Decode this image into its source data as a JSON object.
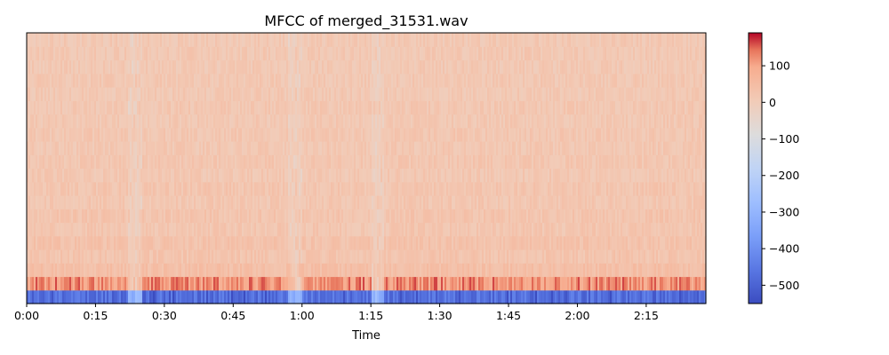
{
  "chart_data": {
    "type": "heatmap",
    "title": "MFCC of merged_31531.wav",
    "xlabel": "Time",
    "ylabel": "",
    "x_range_seconds": [
      0,
      148
    ],
    "x_ticks": [
      {
        "value": 0,
        "label": "0:00"
      },
      {
        "value": 15,
        "label": "0:15"
      },
      {
        "value": 30,
        "label": "0:30"
      },
      {
        "value": 45,
        "label": "0:45"
      },
      {
        "value": 60,
        "label": "1:00"
      },
      {
        "value": 75,
        "label": "1:15"
      },
      {
        "value": 90,
        "label": "1:30"
      },
      {
        "value": 105,
        "label": "1:45"
      },
      {
        "value": 120,
        "label": "2:00"
      },
      {
        "value": 135,
        "label": "2:15"
      }
    ],
    "n_coefficients": 20,
    "colormap": "coolwarm",
    "color_range": [
      -550,
      190
    ],
    "colorbar_ticks": [
      {
        "value": 100,
        "label": "100"
      },
      {
        "value": 0,
        "label": "0"
      },
      {
        "value": -100,
        "label": "−100"
      },
      {
        "value": -200,
        "label": "−200"
      },
      {
        "value": -300,
        "label": "−300"
      },
      {
        "value": -400,
        "label": "−400"
      },
      {
        "value": -500,
        "label": "−500"
      }
    ],
    "coefficient_typical_values": [
      -470,
      120,
      40,
      25,
      30,
      20,
      25,
      18,
      22,
      15,
      20,
      15,
      18,
      14,
      16,
      13,
      15,
      12,
      14,
      12
    ],
    "quiet_regions_seconds": [
      [
        22,
        25
      ],
      [
        75,
        78
      ],
      [
        57,
        60
      ]
    ]
  }
}
